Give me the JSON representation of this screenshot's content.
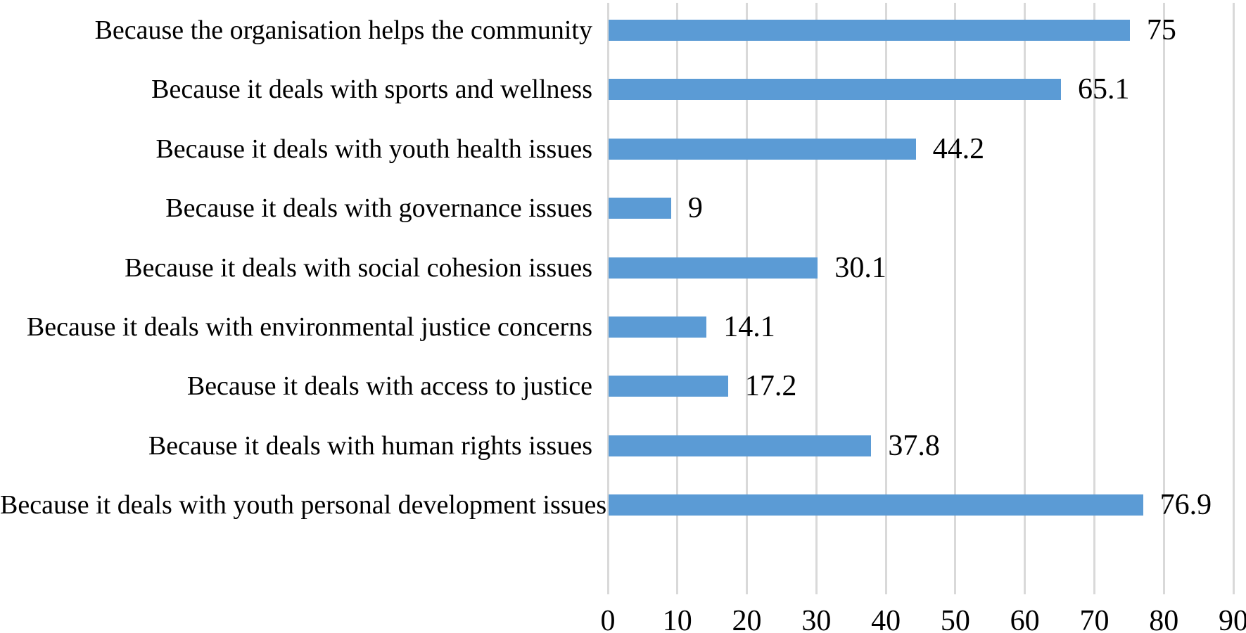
{
  "chart_data": {
    "type": "bar",
    "orientation": "horizontal",
    "title": "",
    "xlabel": "",
    "ylabel": "",
    "categories": [
      "Because the organisation helps the community",
      "Because it deals with sports and wellness",
      "Because it deals with youth health issues",
      "Because it deals with governance issues",
      "Because it deals with social cohesion issues",
      "Because it deals with environmental justice concerns",
      "Because it deals with access to justice",
      "Because it deals with human rights issues",
      "Because it deals with youth personal development issues"
    ],
    "values": [
      75,
      65.1,
      44.2,
      9,
      30.1,
      14.1,
      17.2,
      37.8,
      76.9
    ],
    "value_labels": [
      "75",
      "65.1",
      "44.2",
      "9",
      "30.1",
      "14.1",
      "17.2",
      "37.8",
      "76.9"
    ],
    "xlim": [
      0,
      90
    ],
    "xticks": [
      0,
      10,
      20,
      30,
      40,
      50,
      60,
      70,
      80,
      90
    ],
    "grid": "vertical-gridlines",
    "legend": "none",
    "data_labels": "outside-end",
    "bar_color": "#5B9BD5",
    "gridline_color": "#D9D9D9",
    "text_color": "#000000",
    "background_color": "#FFFFFF"
  }
}
